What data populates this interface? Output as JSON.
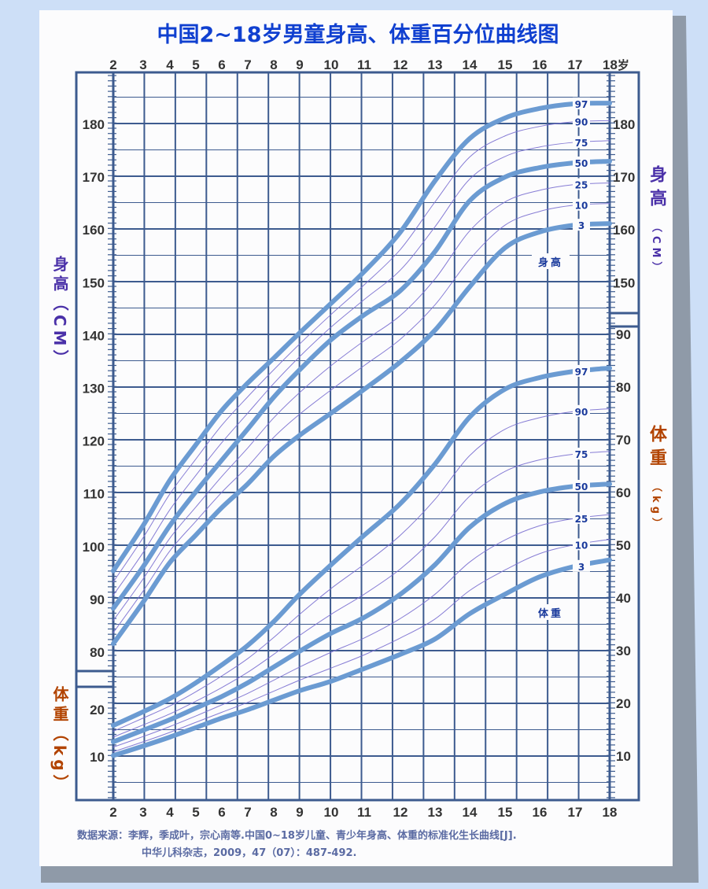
{
  "title": "中国2~18岁男童身高、体重百分位曲线图",
  "x_axis": {
    "ticks": [
      2,
      3,
      4,
      5,
      6,
      7,
      8,
      9,
      10,
      11,
      12,
      13,
      14,
      15,
      16,
      17,
      18
    ],
    "unit": "岁"
  },
  "side_labels": {
    "height_main": "身高",
    "height_unit": "（CM）",
    "weight_main": "体重",
    "weight_unit": "（kg）"
  },
  "inline_labels": {
    "height": "身高",
    "weight": "体重"
  },
  "source": {
    "line1": "数据来源：李辉，季成叶，宗心南等.中国0~18岁儿童、青少年身高、体重的标准化生长曲线[J].",
    "line2": "中华儿科杂志，2009，47（07）：487-492."
  },
  "colors": {
    "title": "#1040d0",
    "grid": "#3d5b8f",
    "thick_curve": "#6b9bd2",
    "thin_curve": "#7a6fd0",
    "height_label": "#4a30a8",
    "weight_label": "#b24300",
    "percentile_label": "#1a3a9c"
  },
  "chart_data": [
    {
      "type": "line",
      "ylabel": "身高（CM）",
      "x": [
        2,
        3,
        4,
        5,
        6,
        7,
        8,
        9,
        10,
        11,
        12,
        13,
        14,
        15,
        16,
        17,
        18
      ],
      "ylim": [
        80,
        185
      ],
      "yticks_left": [
        80,
        90,
        100,
        110,
        120,
        130,
        140,
        150,
        160,
        170,
        180
      ],
      "yticks_right": [
        150,
        160,
        170,
        180
      ],
      "series": [
        {
          "name": "97",
          "emphasis": true,
          "values": [
            95.4,
            104,
            112.6,
            119.3,
            125.8,
            131,
            135.7,
            140.5,
            146.1,
            152.1,
            159.6,
            169.3,
            177.3,
            181.2,
            183,
            183.9,
            184
          ]
        },
        {
          "name": "90",
          "emphasis": false,
          "values": [
            93.3,
            101.7,
            110,
            116.6,
            123,
            128.4,
            133.5,
            138.4,
            144,
            149.6,
            156.3,
            165.3,
            173.8,
            177.8,
            179.6,
            180.5,
            180.7
          ]
        },
        {
          "name": "75",
          "emphasis": false,
          "values": [
            90.8,
            98.9,
            107,
            113.5,
            119.7,
            125.3,
            130.9,
            136,
            141.6,
            146.8,
            152.4,
            160.6,
            169.6,
            173.9,
            175.7,
            176.6,
            176.9
          ]
        },
        {
          "name": "50",
          "emphasis": true,
          "values": [
            88.3,
            96.2,
            104,
            110.4,
            116.4,
            122.3,
            128.3,
            133.5,
            139.2,
            143.9,
            148.5,
            155.9,
            165.5,
            170,
            171.8,
            172.7,
            173
          ]
        },
        {
          "name": "25",
          "emphasis": false,
          "values": [
            86,
            93.9,
            101.6,
            107.5,
            113.3,
            118.7,
            124.4,
            129.2,
            134.3,
            139,
            143.8,
            150.7,
            159.8,
            165.3,
            167.5,
            168.6,
            168.9
          ]
        },
        {
          "name": "10",
          "emphasis": false,
          "values": [
            83.7,
            91.6,
            99.2,
            104.8,
            110.3,
            115.2,
            120.7,
            125.1,
            129.7,
            134.3,
            139.3,
            145.8,
            154.4,
            160.9,
            163.5,
            164.7,
            165
          ]
        },
        {
          "name": "3",
          "emphasis": true,
          "values": [
            81.6,
            89.5,
            97,
            102.2,
            107.4,
            111.9,
            117.1,
            121.1,
            125.3,
            129.8,
            135,
            141,
            149.2,
            156.6,
            159.6,
            160.9,
            161.2
          ]
        }
      ]
    },
    {
      "type": "line",
      "ylabel": "体重（kg）",
      "x": [
        2,
        3,
        4,
        5,
        6,
        7,
        8,
        9,
        10,
        11,
        12,
        13,
        14,
        15,
        16,
        17,
        18
      ],
      "ylim": [
        5,
        90
      ],
      "yticks_left": [
        10,
        20
      ],
      "yticks_right": [
        10,
        20,
        30,
        40,
        50,
        60,
        70,
        80,
        90
      ],
      "series": [
        {
          "name": "97",
          "emphasis": true,
          "values": [
            15.8,
            18.4,
            20.9,
            23.9,
            27.3,
            31,
            35.5,
            40.7,
            46.3,
            51.9,
            57.9,
            65.4,
            74.3,
            79.6,
            81.8,
            83,
            83.6
          ]
        },
        {
          "name": "90",
          "emphasis": false,
          "values": [
            14.7,
            17.2,
            19.5,
            22.2,
            25.2,
            28.5,
            32.5,
            36.9,
            41.8,
            46.4,
            51.9,
            58.7,
            67,
            72,
            74.2,
            75.4,
            75.9
          ]
        },
        {
          "name": "75",
          "emphasis": false,
          "values": [
            13.6,
            15.9,
            18,
            20.4,
            23,
            25.9,
            29.3,
            32.9,
            36.9,
            40.7,
            45.5,
            51.6,
            59.3,
            64,
            66.2,
            67.3,
            67.8
          ]
        },
        {
          "name": "50",
          "emphasis": true,
          "values": [
            12.7,
            14.9,
            16.9,
            19.1,
            21.3,
            23.9,
            26.9,
            29.9,
            33.3,
            36.3,
            40.7,
            46.3,
            53.4,
            57.9,
            60.1,
            61.2,
            61.6
          ]
        },
        {
          "name": "25",
          "emphasis": false,
          "values": [
            11.7,
            13.7,
            15.6,
            17.6,
            19.7,
            21.9,
            24.4,
            26.9,
            29.7,
            32.4,
            36.1,
            40.7,
            46.8,
            51,
            53.7,
            55.1,
            55.8
          ]
        },
        {
          "name": "10",
          "emphasis": false,
          "values": [
            10.8,
            12.7,
            14.5,
            16.4,
            18.3,
            20.2,
            22.3,
            24.4,
            26.7,
            29.2,
            32.4,
            36,
            41.4,
            45.3,
            48.4,
            50.1,
            51.1
          ]
        },
        {
          "name": "3",
          "emphasis": true,
          "values": [
            10.1,
            11.9,
            13.6,
            15.4,
            17.2,
            18.8,
            20.6,
            22.4,
            24.2,
            26.6,
            29.3,
            32.2,
            37,
            40.7,
            44,
            46,
            47.2
          ]
        }
      ]
    }
  ]
}
